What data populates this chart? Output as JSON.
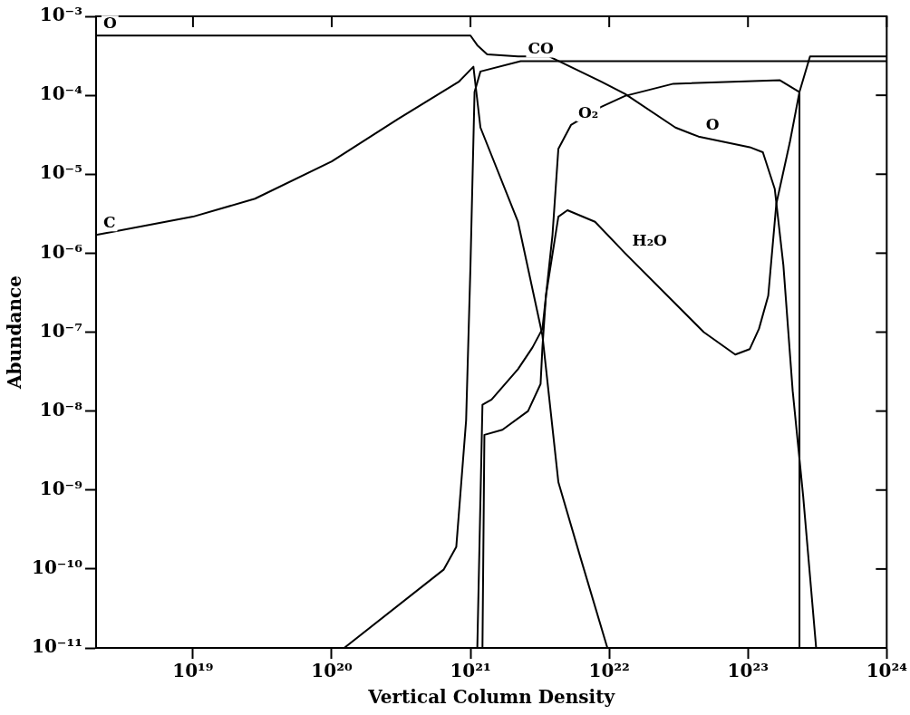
{
  "chart_data": {
    "type": "line",
    "xlabel": "Vertical Column Density",
    "ylabel": "Abundance",
    "log": "xy",
    "grid": false,
    "legend": false,
    "marker": "none",
    "line_style": "solid",
    "xlim": [
      2e+18,
      1e+24
    ],
    "ylim": [
      1e-11,
      0.001
    ],
    "xticks": [
      {
        "value": 1e+19,
        "label": "10¹⁹"
      },
      {
        "value": 1e+20,
        "label": "10²⁰"
      },
      {
        "value": 1e+21,
        "label": "10²¹"
      },
      {
        "value": 1e+22,
        "label": "10²²"
      },
      {
        "value": 1e+23,
        "label": "10²³"
      },
      {
        "value": 1e+24,
        "label": "10²⁴"
      }
    ],
    "yticks": [
      {
        "value": 1e-11,
        "label": "10⁻¹¹"
      },
      {
        "value": 1e-10,
        "label": "10⁻¹⁰"
      },
      {
        "value": 1e-09,
        "label": "10⁻⁹"
      },
      {
        "value": 1e-08,
        "label": "10⁻⁸"
      },
      {
        "value": 1e-07,
        "label": "10⁻⁷"
      },
      {
        "value": 1e-06,
        "label": "10⁻⁶"
      },
      {
        "value": 1e-05,
        "label": "10⁻⁵"
      },
      {
        "value": 0.0001,
        "label": "10⁻⁴"
      },
      {
        "value": 0.001,
        "label": "10⁻³"
      }
    ],
    "series": [
      {
        "color": "#000000",
        "x": [
          2e+18,
          1e+21,
          1.12e+21,
          1.32e+21,
          2.2e+21,
          3.7e+21,
          8.7e+21,
          1.3e+22,
          3e+22,
          4.4e+22,
          1.03e+23,
          1.28e+23,
          1.56e+23,
          1.8e+23,
          2.1e+23,
          2.5e+23,
          3.1e+23
        ],
        "values": [
          0.00057,
          0.00057,
          0.00043,
          0.00033,
          0.00031,
          0.00031,
          0.00015,
          0.000104,
          3.9e-05,
          3e-05,
          2.2e-05,
          1.9e-05,
          6.5e-06,
          7e-07,
          1.8e-08,
          8.3e-10,
          1e-11
        ]
      },
      {
        "color": "#000000",
        "x": [
          2e+18,
          1e+19,
          2.8e+19,
          1e+20,
          3e+20,
          8.3e+20,
          1.05e+21,
          1.18e+21,
          2.2e+21,
          3.3e+21,
          4.3e+21,
          6.2e+21,
          9.7e+21
        ],
        "values": [
          1.7e-06,
          2.9e-06,
          4.9e-06,
          1.45e-05,
          5e-05,
          0.00015,
          0.00023,
          3.9e-05,
          2.5e-06,
          9.1e-08,
          1.26e-09,
          1.4e-10,
          1e-11
        ]
      },
      {
        "color": "#000000",
        "x": [
          1.23e+20,
          6.4e+20,
          7.9e+20,
          9.3e+20,
          1e+21,
          1.07e+21,
          1.18e+21,
          2.3e+21,
          1e+24
        ],
        "values": [
          1e-11,
          9.8e-11,
          1.9e-10,
          7.6e-09,
          7e-07,
          0.00011,
          0.0002,
          0.00027,
          0.00027
        ]
      },
      {
        "color": "#000000",
        "x": [
          1.12e+21,
          1.22e+21,
          1.42e+21,
          2.2e+21,
          2.8e+21,
          3.3e+21,
          3.9e+21,
          4.3e+21,
          5.3e+21,
          8.7e+21,
          1.3e+22,
          2.9e+22,
          1.7e+23,
          2.35e+23,
          2.35e+23
        ],
        "values": [
          1e-11,
          1.2e-08,
          1.4e-08,
          3.4e-08,
          6.4e-08,
          1.1e-07,
          1.7e-06,
          2.1e-05,
          4.2e-05,
          7.1e-05,
          9.8e-05,
          0.00014,
          0.000155,
          0.00011,
          1e-11
        ]
      },
      {
        "color": "#000000",
        "x": [
          1.22e+21,
          1.26e+21,
          1.7e+21,
          2.6e+21,
          3.2e+21,
          3.3e+21,
          3.5e+21,
          4.3e+21,
          5e+21,
          7.9e+21,
          1.3e+22,
          4.8e+22,
          8.1e+22,
          1.03e+23,
          1.2e+23,
          1.4e+23,
          1.6e+23,
          2e+23,
          2.35e+23,
          2.8e+23,
          1e+24
        ],
        "values": [
          1e-11,
          5e-09,
          5.8e-09,
          1e-08,
          2.2e-08,
          6.4e-08,
          2.9e-07,
          2.9e-06,
          3.5e-06,
          2.5e-06,
          1e-06,
          1e-07,
          5.2e-08,
          6.1e-08,
          1.1e-07,
          2.9e-07,
          4.2e-06,
          2.5e-05,
          0.00011,
          0.00031,
          0.00031
        ]
      }
    ],
    "annotations": [
      {
        "text": "O",
        "x": 2e+18,
        "y": 0.00057
      },
      {
        "text": "C",
        "x": 2e+18,
        "y": 1.7e-06
      },
      {
        "text": "CO",
        "x": 2.3e+21,
        "y": 0.00027
      },
      {
        "text": "O₂",
        "x": 5.3e+21,
        "y": 4.2e-05
      },
      {
        "text": "O",
        "x": 4.4e+22,
        "y": 3e-05
      },
      {
        "text": "H₂O",
        "x": 1.3e+22,
        "y": 1e-06
      }
    ]
  }
}
